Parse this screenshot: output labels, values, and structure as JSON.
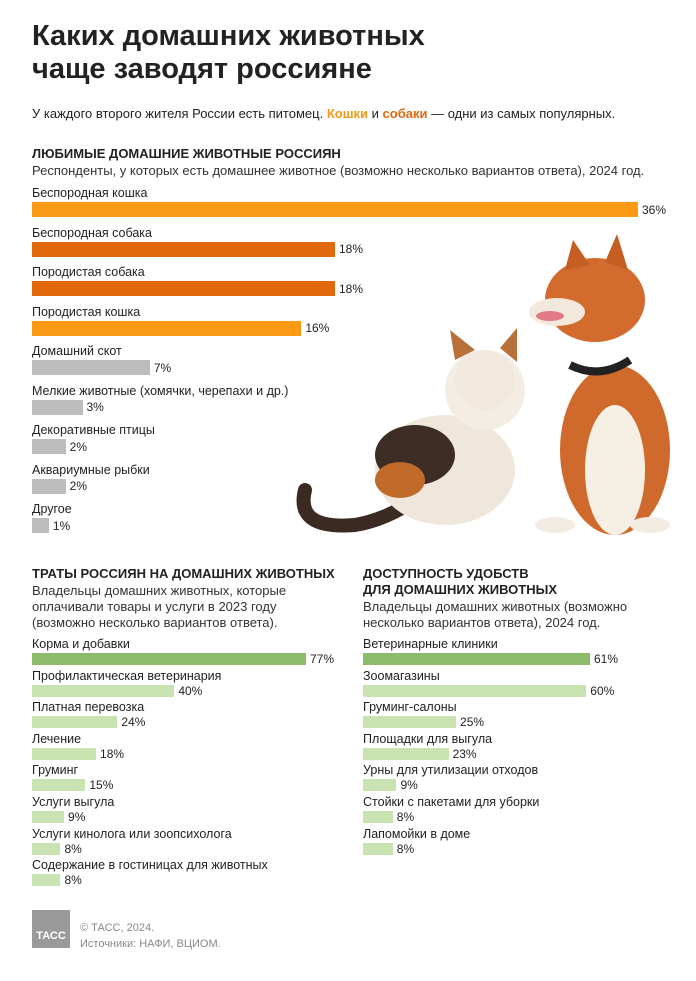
{
  "header": {
    "title": "Каких домашних животных\nчаще заводят россияне",
    "subtitle_parts": [
      "У каждого второго жителя России есть питомец. ",
      "Кошки",
      " и ",
      "собаки",
      " — одни из самых популярных."
    ]
  },
  "chart_data": [
    {
      "type": "bar",
      "orientation": "horizontal",
      "title": "ЛЮБИМЫЕ ДОМАШНИЕ ЖИВОТНЫЕ РОССИЯН",
      "subtitle": "Респонденты, у которых есть домашнее животное (возможно несколько вариантов ответа), 2024 год.",
      "categories": [
        "Беспородная кошка",
        "Беспородная собака",
        "Породистая собака",
        "Породистая кошка",
        "Домашний скот",
        "Мелкие животные (хомячки, черепахи и др.)",
        "Декоративные птицы",
        "Аквариумные рыбки",
        "Другое"
      ],
      "values": [
        36,
        18,
        18,
        16,
        7,
        3,
        2,
        2,
        1
      ],
      "value_labels": [
        "36%",
        "18%",
        "18%",
        "16%",
        "7%",
        "3%",
        "2%",
        "2%",
        "1%"
      ],
      "colors": [
        "#fb9a14",
        "#e2680c",
        "#e2680c",
        "#fb9a14",
        "#bdbdbd",
        "#bdbdbd",
        "#bdbdbd",
        "#bdbdbd",
        "#bdbdbd"
      ]
    },
    {
      "type": "bar",
      "orientation": "horizontal",
      "title": "ТРАТЫ РОССИЯН НА ДОМАШНИХ ЖИВОТНЫХ",
      "subtitle": "Владельцы домашних животных, которые оплачивали товары и услуги в 2023 году (возможно несколько вариантов ответа).",
      "categories": [
        "Корма и добавки",
        "Профилактическая ветеринария",
        "Платная перевозка",
        "Лечение",
        "Груминг",
        "Услуги выгула",
        "Услуги кинолога или зоопсихолога",
        "Содержание в гостиницах для животных"
      ],
      "values": [
        77,
        40,
        24,
        18,
        15,
        9,
        8,
        8
      ],
      "value_labels": [
        "77%",
        "40%",
        "24%",
        "18%",
        "15%",
        "9%",
        "8%",
        "8%"
      ],
      "colors": [
        "#8dbb6c",
        "#c8e2b1",
        "#c8e2b1",
        "#c8e2b1",
        "#c8e2b1",
        "#c8e2b1",
        "#c8e2b1",
        "#c8e2b1"
      ]
    },
    {
      "type": "bar",
      "orientation": "horizontal",
      "title": "ДОСТУПНОСТЬ УДОБСТВ\nДЛЯ ДОМАШНИХ ЖИВОТНЫХ",
      "subtitle": "Владельцы домашних животных (возможно несколько вариантов ответа), 2024 год.",
      "categories": [
        "Ветеринарные клиники",
        "Зоомагазины",
        "Груминг-салоны",
        "Площадки для выгула",
        "Урны для утилизации отходов",
        "Стойки с пакетами для уборки",
        "Лапомойки в доме"
      ],
      "values": [
        61,
        60,
        25,
        23,
        9,
        8,
        8
      ],
      "value_labels": [
        "61%",
        "60%",
        "25%",
        "23%",
        "9%",
        "8%",
        "8%"
      ],
      "colors": [
        "#8dbb6c",
        "#c8e2b1",
        "#c8e2b1",
        "#c8e2b1",
        "#c8e2b1",
        "#c8e2b1",
        "#c8e2b1"
      ]
    }
  ],
  "footer": {
    "logo": "ТАСС",
    "copyright": "© ТАСС, 2024.",
    "sources": "Источники: НАФИ, ВЦИОМ."
  }
}
